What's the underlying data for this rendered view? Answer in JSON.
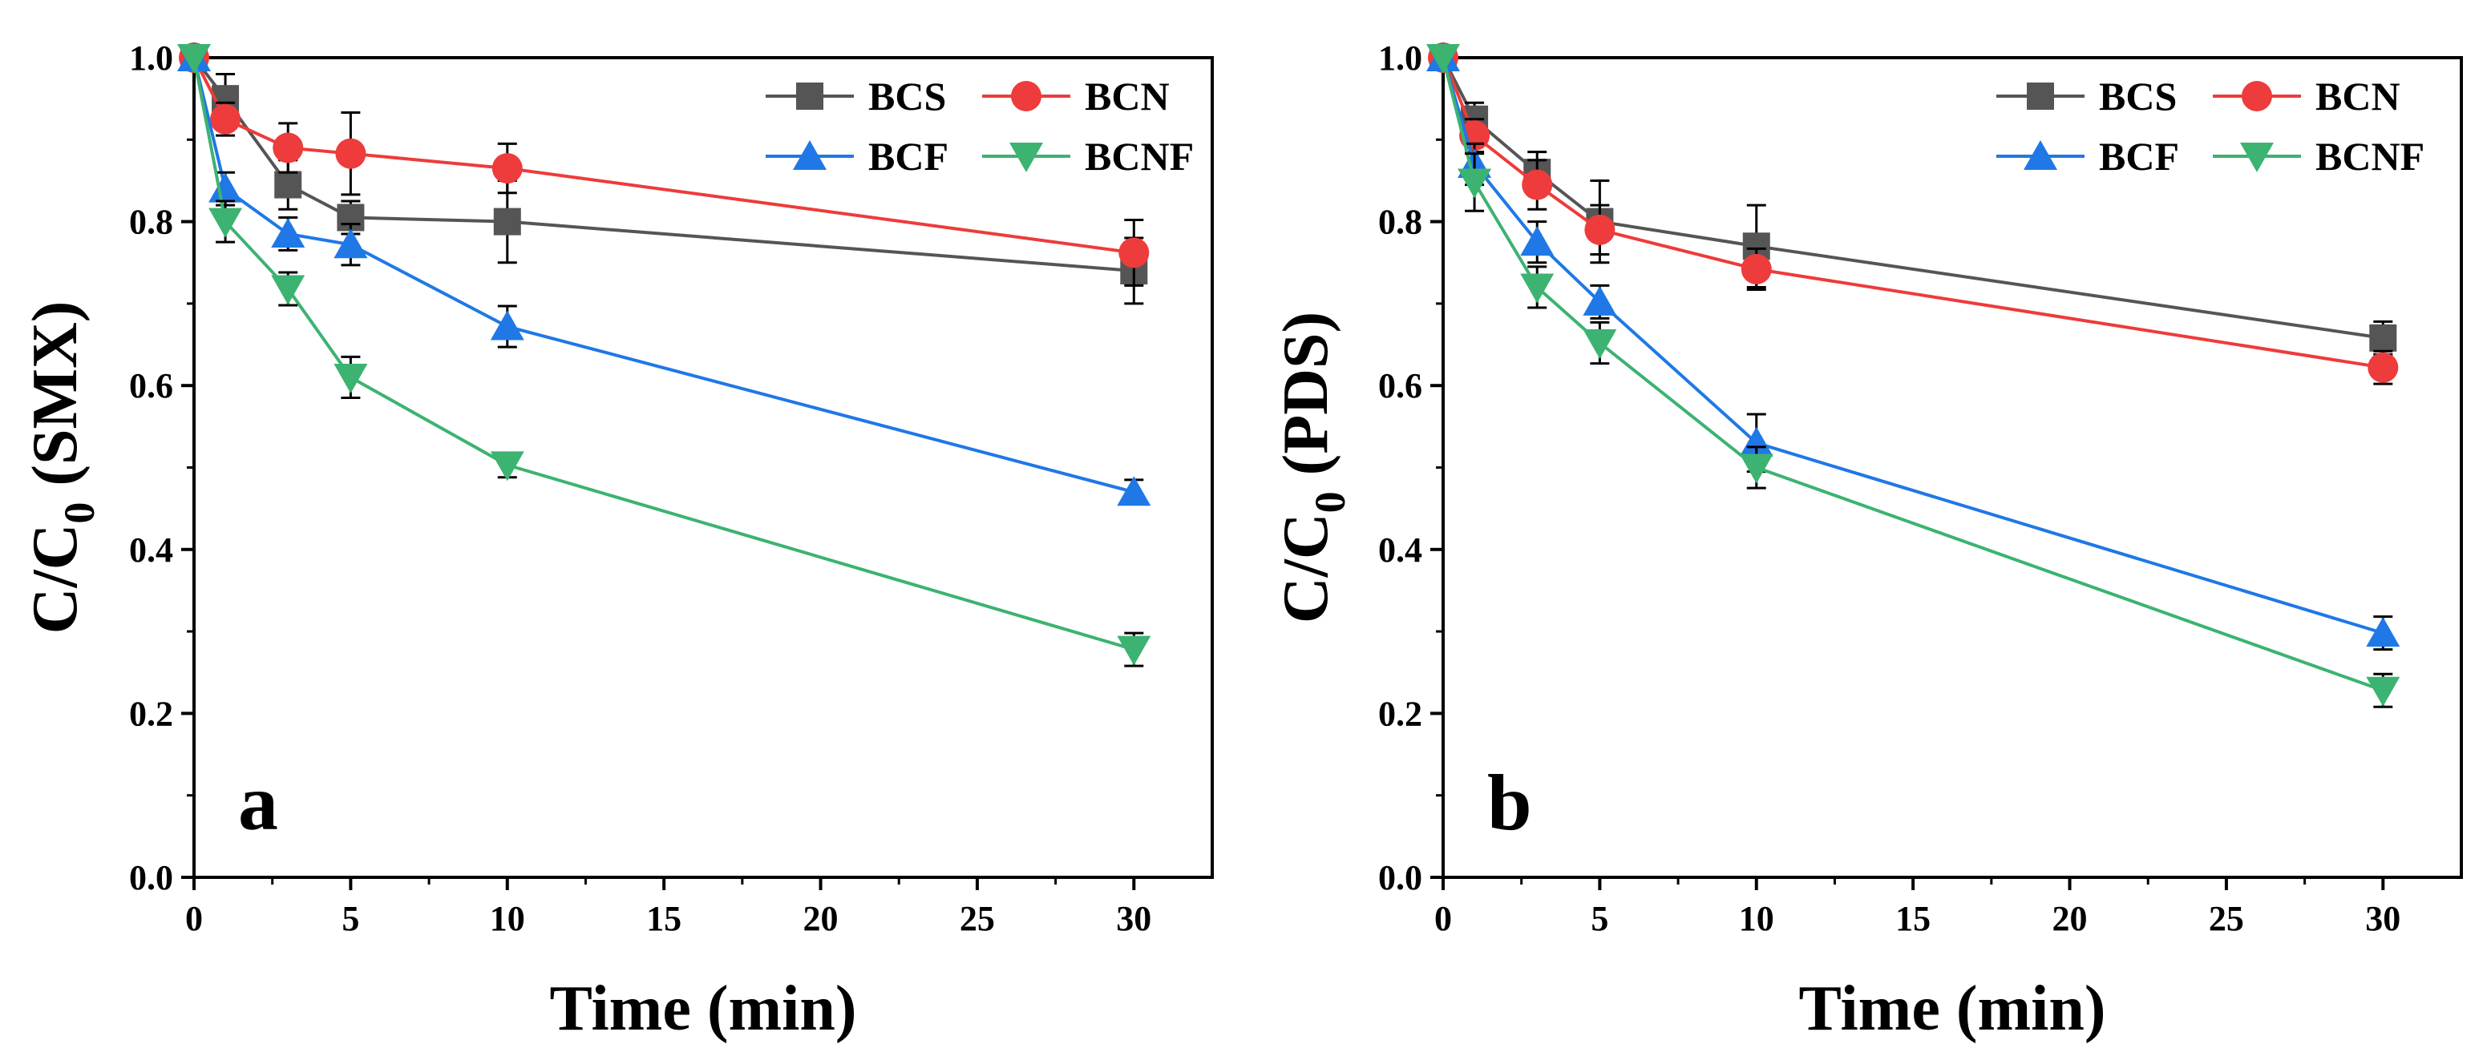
{
  "chart_data": [
    {
      "type": "line",
      "panel_label": "a",
      "xlabel": "Time (min)",
      "ylabel_main": "C/C",
      "ylabel_sub": "0",
      "ylabel_suffix": " (SMX)",
      "xlim": [
        0,
        32.5
      ],
      "ylim": [
        0,
        1.0
      ],
      "xticks": [
        0,
        5,
        10,
        15,
        20,
        25,
        30
      ],
      "yticks": [
        0.0,
        0.2,
        0.4,
        0.6,
        0.8,
        1.0
      ],
      "xtick_labels": [
        "0",
        "5",
        "10",
        "15",
        "20",
        "25",
        "30"
      ],
      "ytick_labels": [
        "0.0",
        "0.2",
        "0.4",
        "0.6",
        "0.8",
        "1.0"
      ],
      "legend_position": "top-right",
      "x": [
        0,
        1,
        3,
        5,
        10,
        30
      ],
      "series": [
        {
          "name": "BCS",
          "color": "#555555",
          "marker": "square",
          "values": [
            1.0,
            0.95,
            0.845,
            0.805,
            0.8,
            0.74
          ],
          "errors": [
            0,
            0.03,
            0.03,
            0.02,
            0.05,
            0.04
          ]
        },
        {
          "name": "BCN",
          "color": "#ee3b3b",
          "marker": "circle",
          "values": [
            1.0,
            0.925,
            0.89,
            0.883,
            0.865,
            0.762
          ],
          "errors": [
            0,
            0.02,
            0.03,
            0.05,
            0.03,
            0.04
          ]
        },
        {
          "name": "BCF",
          "color": "#1f78e6",
          "marker": "triangle-up",
          "values": [
            1.0,
            0.84,
            0.785,
            0.772,
            0.672,
            0.47
          ],
          "errors": [
            0,
            0.02,
            0.02,
            0.025,
            0.025,
            0.015
          ]
        },
        {
          "name": "BCNF",
          "color": "#3cb371",
          "marker": "triangle-down",
          "values": [
            1.0,
            0.8,
            0.718,
            0.61,
            0.503,
            0.278
          ],
          "errors": [
            0,
            0.025,
            0.02,
            0.025,
            0.015,
            0.02
          ]
        }
      ]
    },
    {
      "type": "line",
      "panel_label": "b",
      "xlabel": "Time (min)",
      "ylabel_main": "C/C",
      "ylabel_sub": "0",
      "ylabel_suffix": " (PDS)",
      "xlim": [
        0,
        32.5
      ],
      "ylim": [
        0,
        1.0
      ],
      "xticks": [
        0,
        5,
        10,
        15,
        20,
        25,
        30
      ],
      "yticks": [
        0.0,
        0.2,
        0.4,
        0.6,
        0.8,
        1.0
      ],
      "xtick_labels": [
        "0",
        "5",
        "10",
        "15",
        "20",
        "25",
        "30"
      ],
      "ytick_labels": [
        "0.0",
        "0.2",
        "0.4",
        "0.6",
        "0.8",
        "1.0"
      ],
      "legend_position": "top-right",
      "x": [
        0,
        1,
        3,
        5,
        10,
        30
      ],
      "series": [
        {
          "name": "BCS",
          "color": "#555555",
          "marker": "square",
          "values": [
            1.0,
            0.925,
            0.86,
            0.8,
            0.77,
            0.658
          ],
          "errors": [
            0,
            0.02,
            0.025,
            0.05,
            0.05,
            0.02
          ]
        },
        {
          "name": "BCN",
          "color": "#ee3b3b",
          "marker": "circle",
          "values": [
            1.0,
            0.905,
            0.845,
            0.79,
            0.742,
            0.622
          ],
          "errors": [
            0,
            0.02,
            0.03,
            0.03,
            0.025,
            0.02
          ]
        },
        {
          "name": "BCF",
          "color": "#1f78e6",
          "marker": "triangle-up",
          "values": [
            1.0,
            0.87,
            0.775,
            0.702,
            0.53,
            0.298
          ],
          "errors": [
            0,
            0.025,
            0.025,
            0.02,
            0.035,
            0.02
          ]
        },
        {
          "name": "BCNF",
          "color": "#3cb371",
          "marker": "triangle-down",
          "values": [
            1.0,
            0.848,
            0.72,
            0.652,
            0.5,
            0.228
          ],
          "errors": [
            0,
            0.035,
            0.025,
            0.025,
            0.025,
            0.02
          ]
        }
      ]
    }
  ]
}
